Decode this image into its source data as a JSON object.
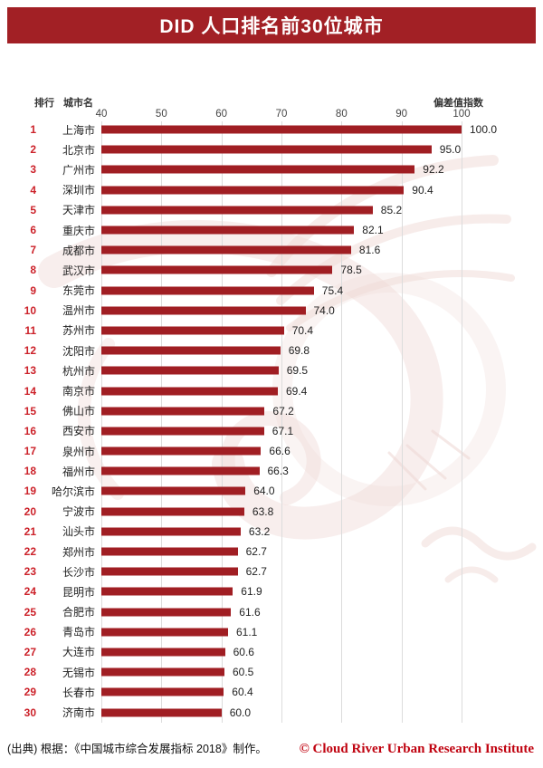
{
  "title": "DID 人口排名前30位城市",
  "header": {
    "rank": "排行",
    "city": "城市名",
    "value": "偏差值指数"
  },
  "footer": {
    "source": "(出典) 根据：《中国城市综合发展指标 2018》制作。",
    "credit": "© Cloud River Urban Research Institute"
  },
  "colors": {
    "title_bg": "#A22025",
    "bar": "#A01E23",
    "rank": "#CC2129",
    "gridline": "#DCDCDC",
    "axis_text": "#444444",
    "text": "#222222",
    "credit": "#C00310",
    "watermark": "#EFD9D6"
  },
  "chart_data": {
    "type": "bar",
    "orientation": "horizontal",
    "title": "DID 人口排名前30位城市",
    "value_axis_label": "偏差值指数",
    "axis_range": [
      40,
      100
    ],
    "ticks": [
      40,
      50,
      60,
      70,
      80,
      90,
      100
    ],
    "grid": true,
    "legend": false,
    "ranks": [
      1,
      2,
      3,
      4,
      5,
      6,
      7,
      8,
      9,
      10,
      11,
      12,
      13,
      14,
      15,
      16,
      17,
      18,
      19,
      20,
      21,
      22,
      23,
      24,
      25,
      26,
      27,
      28,
      29,
      30
    ],
    "categories": [
      "上海市",
      "北京市",
      "广州市",
      "深圳市",
      "天津市",
      "重庆市",
      "成都市",
      "武汉市",
      "东莞市",
      "温州市",
      "苏州市",
      "沈阳市",
      "杭州市",
      "南京市",
      "佛山市",
      "西安市",
      "泉州市",
      "福州市",
      "哈尔滨市",
      "宁波市",
      "汕头市",
      "郑州市",
      "长沙市",
      "昆明市",
      "合肥市",
      "青岛市",
      "大连市",
      "无锡市",
      "长春市",
      "济南市"
    ],
    "values": [
      100.0,
      95.0,
      92.2,
      90.4,
      85.2,
      82.1,
      81.6,
      78.5,
      75.4,
      74.0,
      70.4,
      69.8,
      69.5,
      69.4,
      67.2,
      67.1,
      66.6,
      66.3,
      64.0,
      63.8,
      63.2,
      62.7,
      62.7,
      61.9,
      61.6,
      61.1,
      60.6,
      60.5,
      60.4,
      60.0
    ]
  }
}
